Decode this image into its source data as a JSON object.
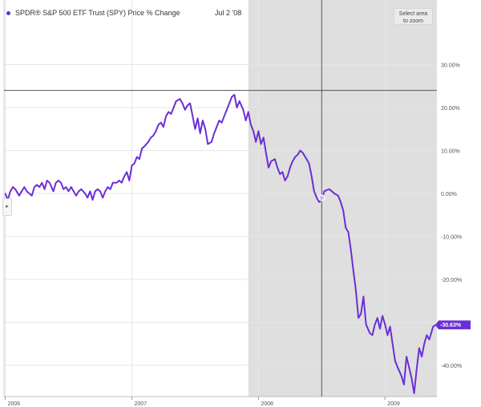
{
  "legend": {
    "series_name": "SPDR® S&P 500 ETF Trust (SPY) Price % Change",
    "hover_date": "Jul 2 '08",
    "series_color": "#6a2fd6"
  },
  "controls": {
    "zoom_label_line1": "Select area",
    "zoom_label_line2": "to zoom",
    "collapse_icon": "chevron-right-icon",
    "collapse_glyph": "▸"
  },
  "colors": {
    "line": "#6a2fd6",
    "shade": "#d9d9d9",
    "grid": "#e6e6e6",
    "crosshair": "#555555",
    "end_badge": "#6a2fd6"
  },
  "end_label": "-30.63%",
  "chart_data": {
    "type": "line",
    "title": "",
    "xlabel": "",
    "ylabel": "",
    "x_range": [
      2005.99,
      2009.41
    ],
    "ylim": [
      -48,
      40
    ],
    "y_ticks": [
      {
        "value": 30,
        "label": "30.00%"
      },
      {
        "value": 20,
        "label": "20.00%"
      },
      {
        "value": 10,
        "label": "10.00%"
      },
      {
        "value": 0,
        "label": "0.00%"
      },
      {
        "value": -10,
        "label": "-10.00%"
      },
      {
        "value": -20,
        "label": "-20.00%"
      },
      {
        "value": -30,
        "label": "-30.00%"
      },
      {
        "value": -40,
        "label": "-40.00%"
      }
    ],
    "x_ticks": [
      {
        "value": 2006.0,
        "label": "2006"
      },
      {
        "value": 2007.0,
        "label": "2007"
      },
      {
        "value": 2008.0,
        "label": "2008"
      },
      {
        "value": 2009.0,
        "label": "2009"
      }
    ],
    "shaded_range": [
      2007.92,
      2009.41
    ],
    "crosshair": {
      "x": 2008.5,
      "y": 24
    },
    "hover_value": -1,
    "grid": true,
    "series": [
      {
        "name": "SPDR® S&P 500 ETF Trust (SPY) Price % Change",
        "x": [
          2006.0,
          2006.02,
          2006.04,
          2006.06,
          2006.08,
          2006.11,
          2006.13,
          2006.15,
          2006.17,
          2006.19,
          2006.21,
          2006.23,
          2006.25,
          2006.27,
          2006.29,
          2006.31,
          2006.33,
          2006.35,
          2006.38,
          2006.4,
          2006.42,
          2006.44,
          2006.46,
          2006.48,
          2006.5,
          2006.52,
          2006.54,
          2006.56,
          2006.58,
          2006.6,
          2006.63,
          2006.65,
          2006.67,
          2006.69,
          2006.71,
          2006.73,
          2006.75,
          2006.77,
          2006.79,
          2006.81,
          2006.83,
          2006.85,
          2006.88,
          2006.9,
          2006.92,
          2006.94,
          2006.96,
          2006.98,
          2007.0,
          2007.02,
          2007.04,
          2007.06,
          2007.08,
          2007.1,
          2007.13,
          2007.15,
          2007.17,
          2007.19,
          2007.21,
          2007.23,
          2007.25,
          2007.27,
          2007.29,
          2007.31,
          2007.33,
          2007.35,
          2007.38,
          2007.4,
          2007.42,
          2007.44,
          2007.46,
          2007.48,
          2007.5,
          2007.52,
          2007.54,
          2007.56,
          2007.58,
          2007.6,
          2007.63,
          2007.65,
          2007.67,
          2007.69,
          2007.71,
          2007.73,
          2007.75,
          2007.77,
          2007.79,
          2007.81,
          2007.83,
          2007.85,
          2007.88,
          2007.9,
          2007.92,
          2007.94,
          2007.96,
          2007.98,
          2008.0,
          2008.02,
          2008.04,
          2008.06,
          2008.08,
          2008.1,
          2008.13,
          2008.15,
          2008.17,
          2008.19,
          2008.21,
          2008.23,
          2008.25,
          2008.27,
          2008.29,
          2008.31,
          2008.33,
          2008.35,
          2008.38,
          2008.4,
          2008.42,
          2008.44,
          2008.46,
          2008.48,
          2008.5,
          2008.52,
          2008.54,
          2008.56,
          2008.58,
          2008.6,
          2008.63,
          2008.65,
          2008.67,
          2008.69,
          2008.71,
          2008.73,
          2008.75,
          2008.77,
          2008.79,
          2008.81,
          2008.83,
          2008.85,
          2008.88,
          2008.9,
          2008.92,
          2008.94,
          2008.96,
          2008.98,
          2009.0,
          2009.02,
          2009.04,
          2009.06,
          2009.08,
          2009.1,
          2009.13,
          2009.15,
          2009.17,
          2009.19,
          2009.21,
          2009.23,
          2009.25,
          2009.27,
          2009.29,
          2009.31,
          2009.33,
          2009.35,
          2009.38,
          2009.4
        ],
        "y": [
          0.0,
          -1.5,
          0.5,
          1.5,
          1.0,
          -0.5,
          0.5,
          1.5,
          0.5,
          0.0,
          -0.5,
          1.5,
          2.0,
          1.5,
          2.5,
          1.0,
          3.0,
          2.5,
          0.5,
          2.5,
          3.0,
          2.5,
          1.0,
          1.5,
          0.5,
          1.5,
          0.5,
          -0.5,
          0.5,
          1.0,
          0.0,
          -1.0,
          0.5,
          -1.5,
          0.5,
          1.0,
          0.5,
          -1.0,
          0.5,
          1.5,
          1.0,
          2.5,
          2.5,
          3.0,
          2.5,
          4.0,
          5.0,
          3.0,
          6.5,
          7.0,
          8.5,
          8.0,
          10.5,
          11.0,
          12.0,
          13.0,
          13.5,
          14.5,
          16.0,
          16.5,
          15.5,
          18.0,
          19.0,
          18.5,
          20.0,
          21.5,
          22.0,
          21.0,
          19.5,
          20.5,
          21.0,
          18.0,
          15.0,
          17.5,
          14.0,
          17.0,
          15.0,
          11.5,
          12.0,
          14.0,
          15.5,
          17.0,
          16.5,
          18.0,
          19.5,
          21.0,
          22.5,
          23.0,
          20.0,
          21.5,
          19.5,
          17.0,
          19.0,
          16.0,
          14.5,
          12.0,
          14.5,
          11.5,
          13.0,
          9.5,
          6.0,
          7.5,
          8.0,
          6.0,
          4.5,
          5.0,
          3.0,
          4.0,
          6.0,
          7.5,
          8.5,
          9.0,
          10.0,
          9.5,
          8.0,
          7.0,
          4.0,
          0.5,
          -1.0,
          -2.0,
          -1.5,
          0.5,
          0.8,
          1.0,
          0.5,
          0.0,
          -0.5,
          -2.0,
          -4.0,
          -8.0,
          -9.0,
          -13.0,
          -18.0,
          -22.5,
          -29.0,
          -28.0,
          -24.0,
          -30.5,
          -32.5,
          -33.0,
          -30.5,
          -29.0,
          -31.5,
          -28.5,
          -30.5,
          -33.0,
          -31.0,
          -35.0,
          -39.0,
          -40.5,
          -42.5,
          -44.5,
          -38.0,
          -40.5,
          -43.0,
          -46.5,
          -41.0,
          -36.0,
          -38.0,
          -35.0,
          -33.0,
          -34.0,
          -31.0,
          -30.6
        ]
      }
    ]
  }
}
